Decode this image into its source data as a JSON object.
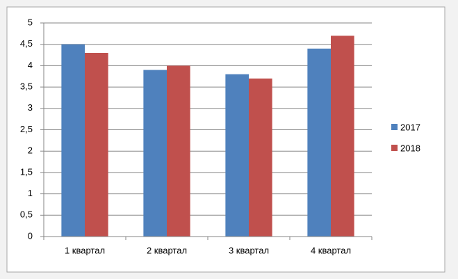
{
  "chart_data": {
    "type": "bar",
    "categories": [
      "1 квартал",
      "2 квартал",
      "3 квартал",
      "4 квартал"
    ],
    "series": [
      {
        "name": "2017",
        "color": "#4f81bd",
        "values": [
          4.5,
          3.9,
          3.8,
          4.4
        ]
      },
      {
        "name": "2018",
        "color": "#c0504d",
        "values": [
          4.3,
          4.0,
          3.7,
          4.7
        ]
      }
    ],
    "ylim": [
      0,
      5
    ],
    "yticks": [
      0,
      {
        "value": 0.5,
        "label": "0,5"
      },
      1,
      {
        "value": 1.5,
        "label": "1,5"
      },
      2,
      {
        "value": 2.5,
        "label": "2,5"
      },
      3,
      {
        "value": 3.5,
        "label": "3,5"
      },
      4,
      {
        "value": 4.5,
        "label": "4,5"
      },
      5
    ],
    "grid": true,
    "legend": "right"
  }
}
